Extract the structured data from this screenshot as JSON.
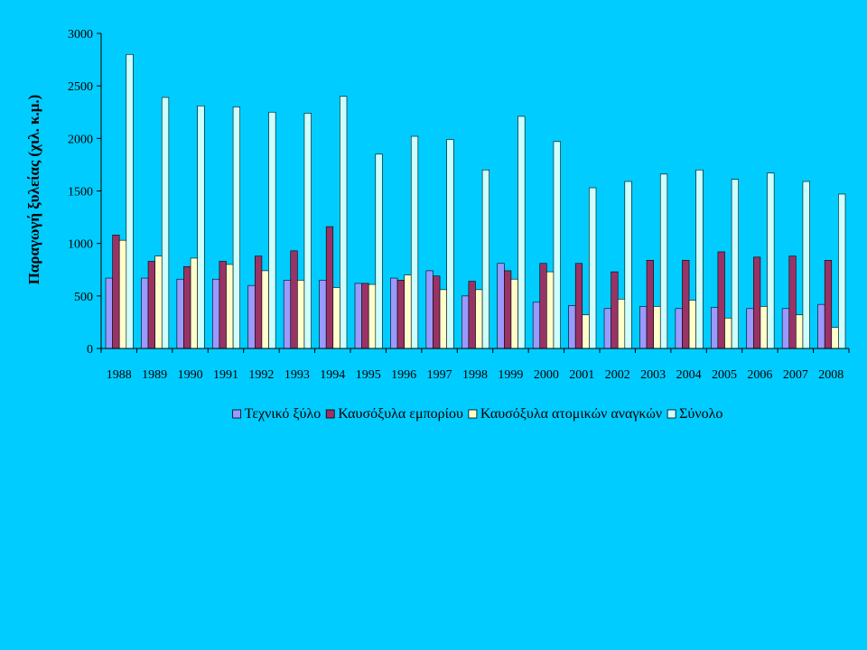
{
  "chart_data": {
    "type": "bar",
    "title": "",
    "xlabel": "",
    "ylabel": "Παραγωγή ξυλείας (χιλ. κ.μ.)",
    "ylim": [
      0,
      3000
    ],
    "yticks": [
      0,
      500,
      1000,
      1500,
      2000,
      2500,
      3000
    ],
    "grid": false,
    "legend_position": "bottom",
    "categories": [
      "1988",
      "1989",
      "1990",
      "1991",
      "1992",
      "1993",
      "1994",
      "1995",
      "1996",
      "1997",
      "1998",
      "1999",
      "2000",
      "2001",
      "2002",
      "2003",
      "2004",
      "2005",
      "2006",
      "2007",
      "2008"
    ],
    "series": [
      {
        "name": "Τεχνικό ξύλο",
        "color": "#9999ff",
        "values": [
          670,
          670,
          660,
          660,
          600,
          650,
          650,
          620,
          670,
          740,
          500,
          810,
          440,
          410,
          380,
          400,
          380,
          390,
          380,
          380,
          420
        ]
      },
      {
        "name": "Καυσόξυλα εμπορίου",
        "color": "#993366",
        "values": [
          1080,
          830,
          780,
          830,
          880,
          930,
          1160,
          620,
          650,
          690,
          640,
          740,
          810,
          810,
          730,
          840,
          840,
          920,
          870,
          880,
          840
        ]
      },
      {
        "name": "Καυσόξυλα  ατομικών αναγκών",
        "color": "#ffffcc",
        "values": [
          1030,
          880,
          860,
          800,
          740,
          650,
          580,
          610,
          700,
          560,
          560,
          660,
          730,
          320,
          470,
          400,
          460,
          290,
          400,
          320,
          200
        ]
      },
      {
        "name": "Σύνολο",
        "color": "#ccffff",
        "values": [
          2800,
          2390,
          2310,
          2300,
          2250,
          2240,
          2400,
          1850,
          2020,
          1990,
          1700,
          2210,
          1970,
          1530,
          1590,
          1660,
          1700,
          1610,
          1670,
          1590,
          1470
        ]
      }
    ]
  }
}
